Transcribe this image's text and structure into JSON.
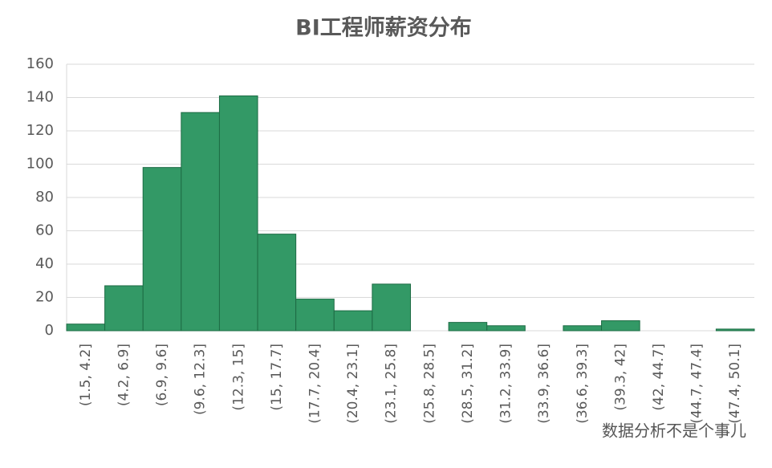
{
  "chart_data": {
    "type": "bar",
    "title": "BI工程师薪资分布",
    "categories": [
      "(1.5, 4.2]",
      "(4.2, 6.9]",
      "(6.9, 9.6]",
      "(9.6, 12.3]",
      "(12.3, 15]",
      "(15, 17.7]",
      "(17.7, 20.4]",
      "(20.4, 23.1]",
      "(23.1, 25.8]",
      "(25.8, 28.5]",
      "(28.5, 31.2]",
      "(31.2, 33.9]",
      "(33.9, 36.6]",
      "(36.6, 39.3]",
      "(39.3, 42]",
      "(42, 44.7]",
      "(44.7, 47.4]",
      "(47.4, 50.1]"
    ],
    "values": [
      4,
      27,
      98,
      131,
      141,
      58,
      19,
      12,
      28,
      0,
      5,
      3,
      0,
      3,
      6,
      0,
      0,
      1
    ],
    "color": "#339966",
    "ylim": [
      0,
      160
    ],
    "yticks": [
      0,
      20,
      40,
      60,
      80,
      100,
      120,
      140,
      160
    ],
    "grid": true
  },
  "watermark": "数据分析不是个事儿"
}
